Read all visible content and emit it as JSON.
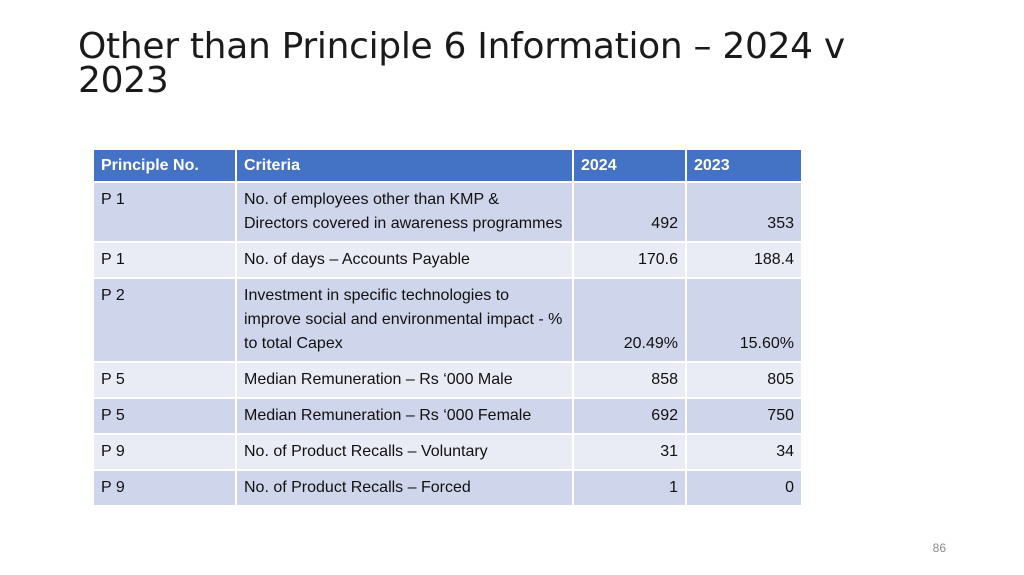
{
  "slide": {
    "title": "Other than Principle 6 Information – 2024 v 2023",
    "page_number": "86"
  },
  "table": {
    "headers": [
      "Principle No.",
      "Criteria",
      "2024",
      "2023"
    ],
    "rows": [
      {
        "principle": "P 1",
        "criteria": "No. of employees other than KMP & Directors covered in awareness programmes",
        "y2024": "492",
        "y2023": "353"
      },
      {
        "principle": "P 1",
        "criteria": "No. of days – Accounts Payable",
        "y2024": "170.6",
        "y2023": "188.4"
      },
      {
        "principle": "P 2",
        "criteria": "Investment in specific technologies to improve social and environmental impact - % to total Capex",
        "y2024": "20.49%",
        "y2023": "15.60%"
      },
      {
        "principle": "P 5",
        "criteria": "Median Remuneration – Rs ‘000 Male",
        "y2024": "858",
        "y2023": "805"
      },
      {
        "principle": "P 5",
        "criteria": "Median Remuneration – Rs ‘000 Female",
        "y2024": "692",
        "y2023": "750"
      },
      {
        "principle": "P 9",
        "criteria": "No. of Product Recalls – Voluntary",
        "y2024": "31",
        "y2023": "34"
      },
      {
        "principle": "P 9",
        "criteria": "No. of Product Recalls – Forced",
        "y2024": "1",
        "y2023": "0"
      }
    ]
  },
  "colors": {
    "header_bg": "#4472c4",
    "row_odd_bg": "#cfd5ea",
    "row_even_bg": "#e9ebf5"
  }
}
